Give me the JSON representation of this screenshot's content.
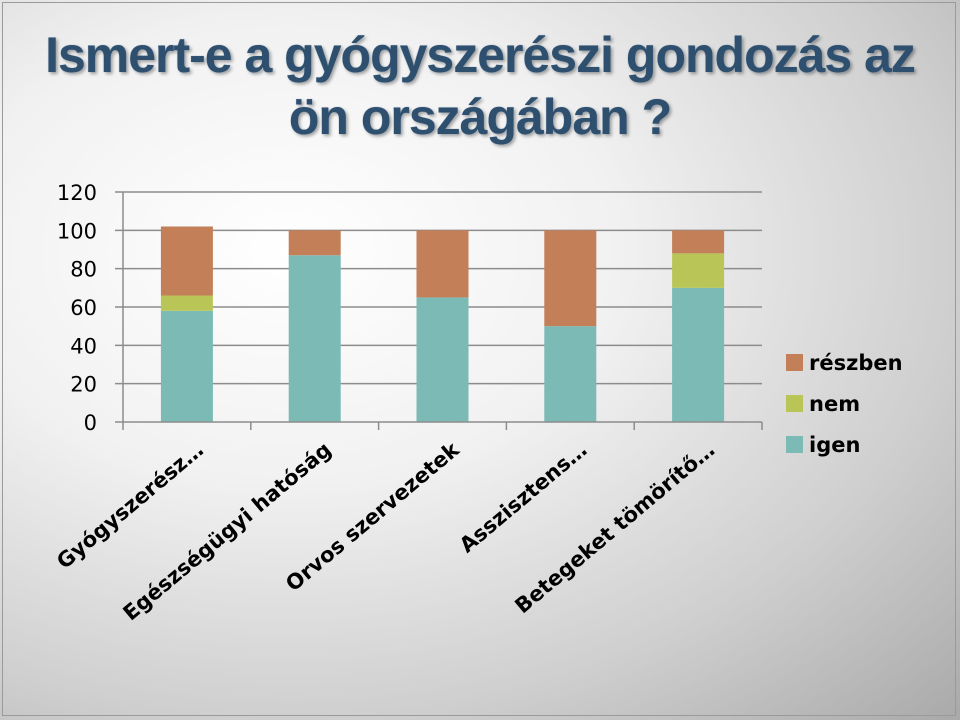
{
  "title": {
    "line1": "Ismert-e a gyógyszerészi gondozás az",
    "line2": "ön országában ?"
  },
  "chart_data": {
    "type": "bar",
    "stacked": true,
    "categories": [
      "Gyógyszerész…",
      "Egészségügyi hatóság",
      "Orvos szervezetek",
      "Asszisztens…",
      "Betegeket tömörítő…"
    ],
    "series": [
      {
        "name": "igen",
        "color": "#7bbab5",
        "values": [
          58,
          87,
          65,
          50,
          70
        ]
      },
      {
        "name": "nem",
        "color": "#b9c657",
        "values": [
          8,
          0,
          0,
          0,
          18
        ]
      },
      {
        "name": "részben",
        "color": "#c27f58",
        "values": [
          36,
          13,
          35,
          50,
          12
        ]
      }
    ],
    "legend_order": [
      "részben",
      "nem",
      "igen"
    ],
    "y_ticks": [
      0,
      20,
      40,
      60,
      80,
      100,
      120
    ],
    "ylim": [
      0,
      120
    ],
    "grid": true,
    "legend_position": "right"
  }
}
